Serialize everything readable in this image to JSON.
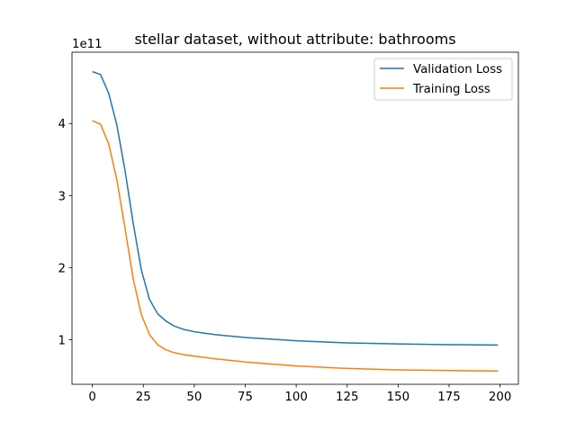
{
  "chart_data": {
    "type": "line",
    "title": "stellar dataset, without attribute: bathrooms",
    "xlabel": "",
    "ylabel": "",
    "y_offset_label": "1e11",
    "xlim": [
      -10,
      209
    ],
    "ylim": [
      0.38,
      4.99
    ],
    "x_ticks": [
      0,
      25,
      50,
      75,
      100,
      125,
      150,
      175,
      200
    ],
    "y_ticks": [
      1,
      2,
      3,
      4
    ],
    "grid": false,
    "legend_position": "top-right",
    "colors": {
      "Validation Loss": "#1f77b4",
      "Training Loss": "#ff7f0e"
    },
    "series": [
      {
        "name": "Validation Loss",
        "x": [
          0,
          4,
          8,
          12,
          16,
          20,
          24,
          28,
          32,
          36,
          40,
          45,
          50,
          60,
          75,
          100,
          125,
          150,
          175,
          199
        ],
        "y": [
          4.72,
          4.68,
          4.42,
          3.98,
          3.35,
          2.62,
          1.97,
          1.56,
          1.36,
          1.26,
          1.19,
          1.14,
          1.11,
          1.07,
          1.03,
          0.985,
          0.955,
          0.94,
          0.93,
          0.925
        ]
      },
      {
        "name": "Training Loss",
        "x": [
          0,
          4,
          8,
          12,
          16,
          20,
          24,
          28,
          32,
          36,
          40,
          45,
          50,
          60,
          75,
          100,
          125,
          150,
          175,
          199
        ],
        "y": [
          4.04,
          3.99,
          3.72,
          3.22,
          2.55,
          1.85,
          1.35,
          1.07,
          0.93,
          0.86,
          0.82,
          0.79,
          0.77,
          0.735,
          0.69,
          0.635,
          0.6,
          0.58,
          0.57,
          0.565
        ]
      }
    ]
  }
}
